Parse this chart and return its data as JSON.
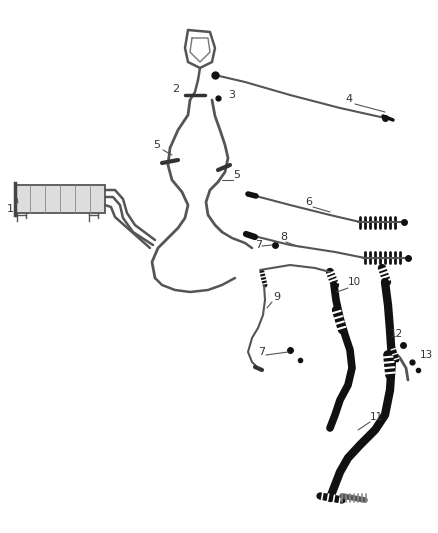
{
  "bg_color": "#ffffff",
  "line_color": "#555555",
  "dark_color": "#111111",
  "label_color": "#333333",
  "fig_width": 4.38,
  "fig_height": 5.33,
  "dpi": 100
}
